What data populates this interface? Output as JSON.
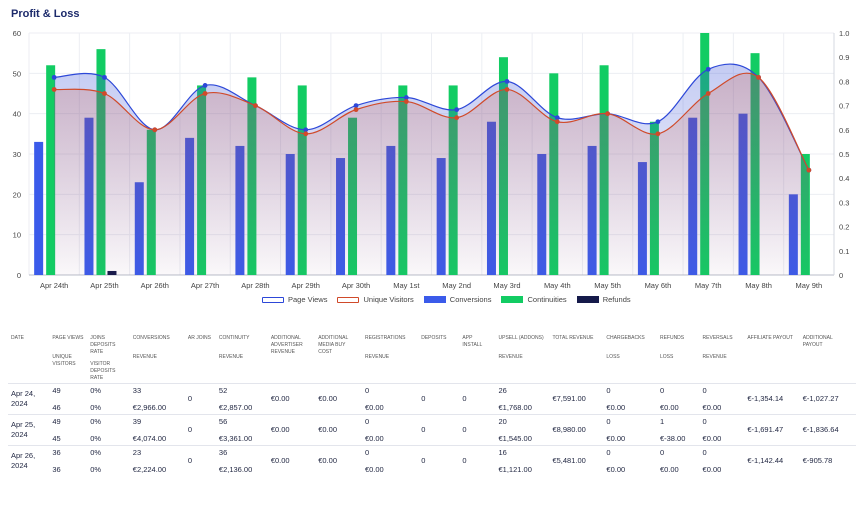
{
  "page": {
    "title": "Profit & Loss"
  },
  "colors": {
    "page_views": "#2d48d8",
    "unique_visitors": "#d04a2a",
    "conversions": "#3b5bea",
    "continuities": "#12cc63",
    "refunds": "#151a4a"
  },
  "legend": [
    {
      "label": "Page Views",
      "color": "#2d48d8",
      "style": "outline"
    },
    {
      "label": "Unique Visitors",
      "color": "#d04a2a",
      "style": "outline"
    },
    {
      "label": "Conversions",
      "color": "#3b5bea",
      "style": "fill"
    },
    {
      "label": "Continuities",
      "color": "#12cc63",
      "style": "fill"
    },
    {
      "label": "Refunds",
      "color": "#151a4a",
      "style": "fill"
    }
  ],
  "chart_data": {
    "type": "bar",
    "categories": [
      "Apr 24th",
      "Apr 25th",
      "Apr 26th",
      "Apr 27th",
      "Apr 28th",
      "Apr 29th",
      "Apr 30th",
      "May 1st",
      "May 2nd",
      "May 3rd",
      "May 4th",
      "May 5th",
      "May 6th",
      "May 7th",
      "May 8th",
      "May 9th"
    ],
    "y_left_ticks": [
      "0",
      "10",
      "20",
      "30",
      "40",
      "50",
      "60"
    ],
    "y_right_ticks": [
      "0",
      "0.1",
      "0.2",
      "0.3",
      "0.4",
      "0.5",
      "0.6",
      "0.7",
      "0.8",
      "0.9",
      "1.0"
    ],
    "ylim_left": [
      0,
      60
    ],
    "ylim_right": [
      0,
      1
    ],
    "grid": true,
    "legend_position": "bottom",
    "series": [
      {
        "name": "Conversions",
        "kind": "bar",
        "values": [
          33,
          39,
          23,
          34,
          32,
          30,
          29,
          32,
          29,
          38,
          30,
          32,
          28,
          39,
          40,
          20
        ]
      },
      {
        "name": "Continuities",
        "kind": "bar",
        "values": [
          52,
          56,
          36,
          47,
          49,
          47,
          39,
          47,
          47,
          54,
          50,
          52,
          38,
          60,
          55,
          30
        ]
      },
      {
        "name": "Refunds",
        "kind": "bar",
        "values": [
          0,
          1,
          0,
          0,
          0,
          0,
          0,
          0,
          0,
          0,
          0,
          0,
          0,
          0,
          0,
          0
        ]
      },
      {
        "name": "Page Views",
        "kind": "area",
        "values": [
          49,
          49,
          36,
          47,
          42,
          36,
          42,
          44,
          41,
          48,
          39,
          40,
          38,
          51,
          49,
          26
        ]
      },
      {
        "name": "Unique Visitors",
        "kind": "area",
        "values": [
          46,
          45,
          36,
          45,
          42,
          35,
          41,
          43,
          39,
          46,
          38,
          40,
          35,
          45,
          49,
          26
        ]
      }
    ]
  },
  "table": {
    "headers": [
      [
        "DATE"
      ],
      [
        "PAGE VIEWS",
        "UNIQUE VISITORS"
      ],
      [
        "JOINS DEPOSITS RATE",
        "VISITOR DEPOSITS RATE"
      ],
      [
        "CONVERSIONS",
        "REVENUE"
      ],
      [
        "AR JOINS"
      ],
      [
        "CONTINUITY",
        "REVENUE"
      ],
      [
        "ADDITIONAL ADVERTISER REVENUE"
      ],
      [
        "ADDITIONAL MEDIA BUY COST"
      ],
      [
        "REGISTRATIONS",
        "REVENUE"
      ],
      [
        "DEPOSITS"
      ],
      [
        "APP INSTALL"
      ],
      [
        "UPSELL (ADDONS)",
        "REVENUE"
      ],
      [
        "TOTAL REVENUE"
      ],
      [
        "CHARGEBACKS",
        "LOSS"
      ],
      [
        "REFUNDS",
        "LOSS"
      ],
      [
        "REVERSALS",
        "REVENUE"
      ],
      [
        "AFFILIATE PAYOUT"
      ],
      [
        "ADDITIONAL PAYOUT"
      ]
    ],
    "rows": [
      [
        [
          "Apr 24, 2024"
        ],
        [
          "49",
          "46"
        ],
        [
          "0%",
          "0%"
        ],
        [
          "33",
          "€2,966.00"
        ],
        [
          "0"
        ],
        [
          "52",
          "€2,857.00"
        ],
        [
          "€0.00"
        ],
        [
          "€0.00"
        ],
        [
          "0",
          "€0.00"
        ],
        [
          "0"
        ],
        [
          "0"
        ],
        [
          "26",
          "€1,768.00"
        ],
        [
          "€7,591.00"
        ],
        [
          "0",
          "€0.00"
        ],
        [
          "0",
          "€0.00"
        ],
        [
          "0",
          "€0.00"
        ],
        [
          "€-1,354.14"
        ],
        [
          "€-1,027.27"
        ]
      ],
      [
        [
          "Apr 25, 2024"
        ],
        [
          "49",
          "45"
        ],
        [
          "0%",
          "0%"
        ],
        [
          "39",
          "€4,074.00"
        ],
        [
          "0"
        ],
        [
          "56",
          "€3,361.00"
        ],
        [
          "€0.00"
        ],
        [
          "€0.00"
        ],
        [
          "0",
          "€0.00"
        ],
        [
          "0"
        ],
        [
          "0"
        ],
        [
          "20",
          "€1,545.00"
        ],
        [
          "€8,980.00"
        ],
        [
          "0",
          "€0.00"
        ],
        [
          "1",
          "€-38.00"
        ],
        [
          "0",
          "€0.00"
        ],
        [
          "€-1,691.47"
        ],
        [
          "€-1,836.64"
        ]
      ],
      [
        [
          "Apr 26, 2024"
        ],
        [
          "36",
          "36"
        ],
        [
          "0%",
          "0%"
        ],
        [
          "23",
          "€2,224.00"
        ],
        [
          "0"
        ],
        [
          "36",
          "€2,136.00"
        ],
        [
          "€0.00"
        ],
        [
          "€0.00"
        ],
        [
          "0",
          "€0.00"
        ],
        [
          "0"
        ],
        [
          "0"
        ],
        [
          "16",
          "€1,121.00"
        ],
        [
          "€5,481.00"
        ],
        [
          "0",
          "€0.00"
        ],
        [
          "0",
          "€0.00"
        ],
        [
          "0",
          "€0.00"
        ],
        [
          "€-1,142.44"
        ],
        [
          "€-905.78"
        ]
      ]
    ]
  }
}
